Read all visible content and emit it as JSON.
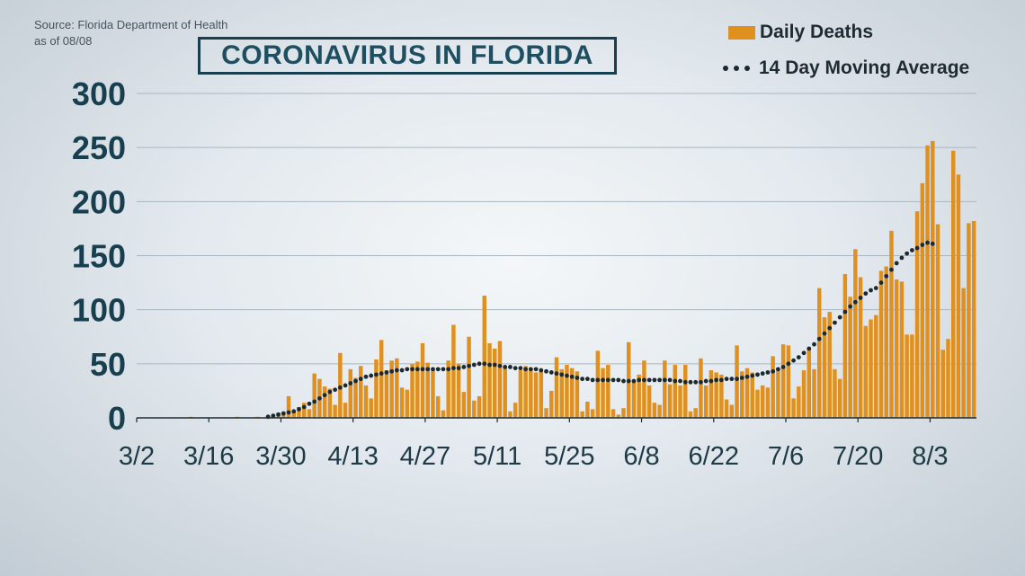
{
  "source": {
    "line1": "Source: Florida Department of Health",
    "line2": "as of 08/08"
  },
  "title": "CORONAVIRUS IN FLORIDA",
  "legend": {
    "bars_label": "Daily Deaths",
    "line_label": "14 Day Moving Average"
  },
  "colors": {
    "bar": "#e0901f",
    "line": "#1c2a30",
    "grid": "#aab6bf",
    "axis_labels": "#173f4f"
  },
  "chart_data": {
    "type": "bar",
    "title": "CORONAVIRUS IN FLORIDA",
    "xlabel": "",
    "ylabel": "",
    "ylim": [
      0,
      300
    ],
    "y_ticks": [
      0,
      50,
      100,
      150,
      200,
      250,
      300
    ],
    "grid": true,
    "legend_position": "top-right",
    "x_start": "3/2",
    "x_end": "8/7",
    "x_ticks": [
      "3/2",
      "3/16",
      "3/30",
      "4/13",
      "4/27",
      "5/11",
      "5/25",
      "6/8",
      "6/22",
      "7/6",
      "7/20",
      "8/3"
    ],
    "series": [
      {
        "name": "Daily Deaths",
        "kind": "bar",
        "values": [
          0,
          0,
          0,
          0,
          0,
          0,
          0,
          0,
          0,
          0,
          1,
          0,
          0,
          0,
          0,
          0,
          0,
          0,
          0,
          1,
          0,
          0,
          0,
          1,
          0,
          0,
          2,
          5,
          6,
          20,
          5,
          10,
          14,
          8,
          41,
          36,
          29,
          27,
          12,
          60,
          14,
          45,
          37,
          48,
          30,
          18,
          54,
          72,
          44,
          53,
          55,
          28,
          26,
          50,
          52,
          69,
          51,
          44,
          20,
          7,
          53,
          86,
          50,
          24,
          75,
          16,
          20,
          113,
          69,
          64,
          71,
          47,
          6,
          14,
          44,
          48,
          46,
          42,
          44,
          9,
          25,
          56,
          45,
          49,
          46,
          43,
          6,
          15,
          8,
          62,
          46,
          49,
          8,
          3,
          9,
          70,
          33,
          40,
          53,
          30,
          14,
          12,
          53,
          31,
          49,
          30,
          49,
          6,
          9,
          55,
          30,
          44,
          42,
          40,
          17,
          12,
          67,
          43,
          46,
          42,
          26,
          30,
          28,
          57,
          45,
          68,
          67,
          18,
          29,
          44,
          63,
          45,
          120,
          93,
          98,
          45,
          36,
          133,
          112,
          156,
          130,
          85,
          91,
          95,
          136,
          140,
          173,
          128,
          126,
          77,
          77,
          191,
          217,
          252,
          256,
          179,
          63,
          73,
          247,
          225,
          120,
          180,
          182
        ]
      },
      {
        "name": "14 Day Moving Average",
        "kind": "dotted-line",
        "x_start": "3/27",
        "x_end": "8/6",
        "values": [
          1,
          2,
          3,
          4,
          5,
          6,
          8,
          10,
          13,
          15,
          18,
          21,
          24,
          26,
          28,
          30,
          32,
          34,
          36,
          38,
          39,
          40,
          41,
          42,
          43,
          44,
          44,
          45,
          45,
          45,
          45,
          45,
          45,
          45,
          45,
          45,
          46,
          46,
          47,
          48,
          49,
          50,
          50,
          49,
          49,
          48,
          47,
          47,
          46,
          46,
          45,
          45,
          45,
          44,
          43,
          42,
          41,
          40,
          39,
          38,
          37,
          36,
          36,
          35,
          35,
          35,
          35,
          35,
          35,
          34,
          34,
          34,
          35,
          35,
          35,
          35,
          35,
          35,
          35,
          34,
          34,
          33,
          33,
          33,
          33,
          34,
          34,
          35,
          35,
          36,
          36,
          36,
          37,
          38,
          39,
          40,
          41,
          42,
          43,
          45,
          47,
          50,
          53,
          56,
          60,
          64,
          68,
          73,
          78,
          83,
          88,
          93,
          98,
          103,
          107,
          111,
          115,
          118,
          120,
          125,
          131,
          137,
          143,
          148,
          152,
          155,
          157,
          160,
          162,
          161
        ]
      }
    ]
  }
}
